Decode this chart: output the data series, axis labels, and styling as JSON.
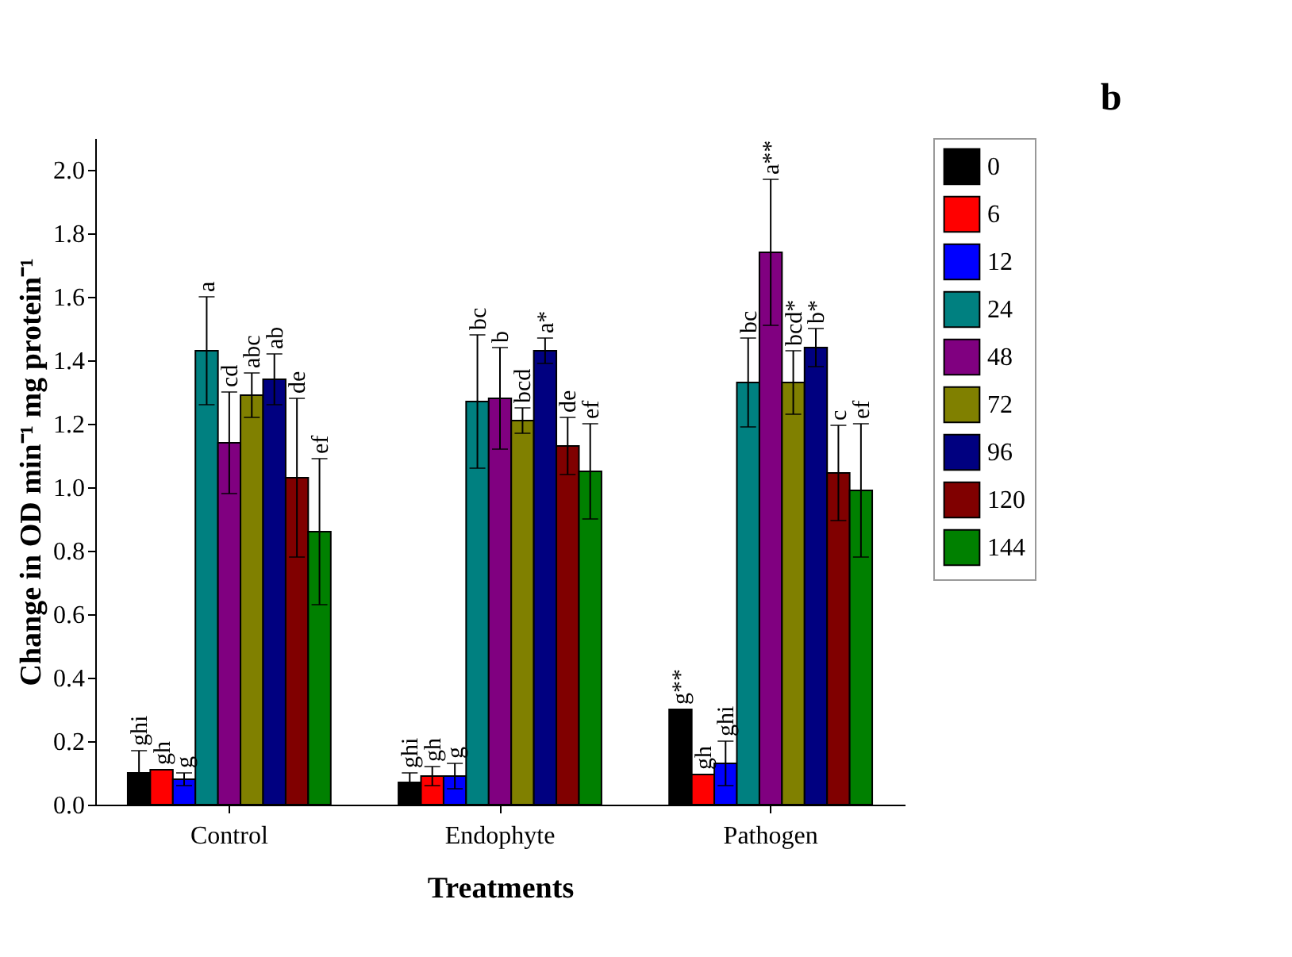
{
  "chart_data": {
    "type": "bar",
    "xlabel": "Treatments",
    "ylabel": "Change in OD min⁻¹ mg protein⁻¹",
    "categories": [
      "Control",
      "Endophyte",
      "Pathogen"
    ],
    "series": [
      {
        "name": "0",
        "color": "#000000",
        "values": [
          0.1,
          0.07,
          0.3
        ],
        "errors": [
          0.07,
          0.03,
          null
        ]
      },
      {
        "name": "6",
        "color": "#ff0000",
        "values": [
          0.11,
          0.09,
          0.095
        ],
        "errors": [
          null,
          0.03,
          null
        ]
      },
      {
        "name": "12",
        "color": "#0000ff",
        "values": [
          0.08,
          0.09,
          0.13
        ],
        "errors": [
          0.02,
          0.04,
          0.07
        ]
      },
      {
        "name": "24",
        "color": "#008080",
        "values": [
          1.43,
          1.27,
          1.33
        ],
        "errors": [
          0.17,
          0.21,
          0.14
        ]
      },
      {
        "name": "48",
        "color": "#800080",
        "values": [
          1.14,
          1.28,
          1.74
        ],
        "errors": [
          0.16,
          0.16,
          0.23
        ]
      },
      {
        "name": "72",
        "color": "#808000",
        "values": [
          1.29,
          1.21,
          1.33
        ],
        "errors": [
          0.07,
          0.04,
          0.1
        ]
      },
      {
        "name": "96",
        "color": "#000080",
        "values": [
          1.34,
          1.43,
          1.44
        ],
        "errors": [
          0.08,
          0.04,
          0.06
        ]
      },
      {
        "name": "120",
        "color": "#800000",
        "values": [
          1.03,
          1.13,
          1.045
        ],
        "errors": [
          0.25,
          0.09,
          0.15
        ]
      },
      {
        "name": "144",
        "color": "#008000",
        "values": [
          0.86,
          1.05,
          0.99
        ],
        "errors": [
          0.23,
          0.15,
          0.21
        ]
      }
    ],
    "ylim": [
      0,
      2.1
    ],
    "yticks": [
      {
        "value": 0,
        "label": "0.0"
      },
      {
        "value": 0.2,
        "label": "0.2"
      },
      {
        "value": 0.4,
        "label": "0.4"
      },
      {
        "value": 0.6,
        "label": "0.6"
      },
      {
        "value": 0.8,
        "label": "0.8"
      },
      {
        "value": 1.0,
        "label": "1.0"
      },
      {
        "value": 1.2,
        "label": "1.2"
      },
      {
        "value": 1.4,
        "label": "1.4"
      },
      {
        "value": 1.6,
        "label": "1.6"
      },
      {
        "value": 1.8,
        "label": "1.8"
      },
      {
        "value": 2.0,
        "label": "2.0"
      }
    ],
    "grid": false,
    "legend": "top right",
    "annotations": [
      "ghi",
      "gh",
      "g",
      "a",
      "cd",
      "abc",
      "ab",
      "de",
      "ef",
      "ghi",
      "gh",
      "g",
      "bc",
      "b",
      "bcd",
      "a*",
      "de",
      "ef",
      "g**",
      "gh",
      "ghi",
      "bc",
      "a**",
      "bcd*",
      "b*",
      "c",
      "ef",
      "b"
    ]
  }
}
